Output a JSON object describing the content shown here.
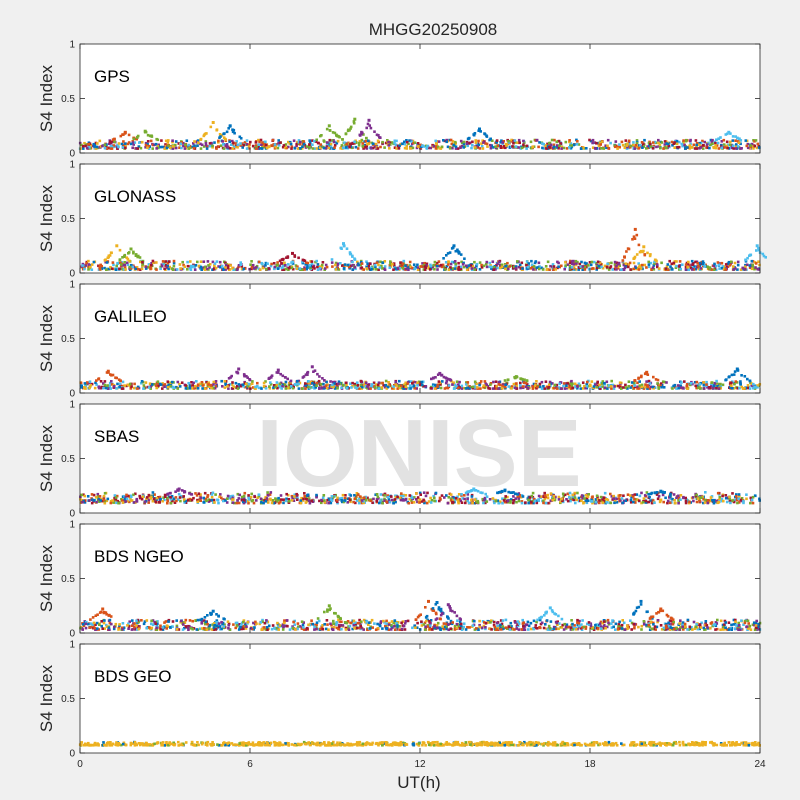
{
  "figure": {
    "title": "MHGG20250908",
    "xlabel": "UT(h)",
    "watermark": "IONISE",
    "colors": {
      "background": "#f0f0f0",
      "axes_bg": "#ffffff",
      "axis": "#262626",
      "watermark": "#d9d9d9"
    }
  },
  "chart_data": [
    {
      "type": "scatter",
      "label": "GPS",
      "ylabel": "S4 Index",
      "xlim": [
        0,
        24
      ],
      "ylim": [
        0,
        1
      ],
      "xticks": [
        "0",
        "6",
        "12",
        "18",
        "24"
      ],
      "yticks": [
        "0",
        "0.5",
        "1"
      ],
      "baseline_s4": [
        0.04,
        0.12
      ],
      "series": [
        {
          "name": "sat-blue",
          "color": "#0072BD"
        },
        {
          "name": "sat-orange",
          "color": "#D95319"
        },
        {
          "name": "sat-yellow",
          "color": "#EDB120"
        },
        {
          "name": "sat-purple",
          "color": "#7E2F8E"
        },
        {
          "name": "sat-green",
          "color": "#77AC30"
        },
        {
          "name": "sat-cyan",
          "color": "#4DBEEE"
        },
        {
          "name": "sat-darkred",
          "color": "#A2142F"
        }
      ],
      "peaks": [
        [
          4.7,
          0.28
        ],
        [
          5.3,
          0.25
        ],
        [
          8.8,
          0.25
        ],
        [
          9.7,
          0.31
        ],
        [
          10.2,
          0.3
        ],
        [
          14.1,
          0.22
        ],
        [
          1.6,
          0.19
        ],
        [
          2.3,
          0.2
        ],
        [
          22.9,
          0.19
        ]
      ]
    },
    {
      "type": "scatter",
      "label": "GLONASS",
      "ylabel": "S4 Index",
      "xlim": [
        0,
        24
      ],
      "ylim": [
        0,
        1
      ],
      "xticks": [
        "0",
        "6",
        "12",
        "18",
        "24"
      ],
      "yticks": [
        "0",
        "0.5",
        "1"
      ],
      "baseline_s4": [
        0.03,
        0.11
      ],
      "series": [
        {
          "name": "sat-blue",
          "color": "#0072BD"
        },
        {
          "name": "sat-orange",
          "color": "#D95319"
        },
        {
          "name": "sat-yellow",
          "color": "#EDB120"
        },
        {
          "name": "sat-purple",
          "color": "#7E2F8E"
        },
        {
          "name": "sat-green",
          "color": "#77AC30"
        },
        {
          "name": "sat-cyan",
          "color": "#4DBEEE"
        },
        {
          "name": "sat-darkred",
          "color": "#A2142F"
        }
      ],
      "peaks": [
        [
          1.3,
          0.25
        ],
        [
          1.8,
          0.22
        ],
        [
          9.3,
          0.27
        ],
        [
          13.2,
          0.25
        ],
        [
          19.6,
          0.4
        ],
        [
          19.9,
          0.24
        ],
        [
          23.9,
          0.25
        ],
        [
          7.5,
          0.18
        ]
      ]
    },
    {
      "type": "scatter",
      "label": "GALILEO",
      "ylabel": "S4 Index",
      "xlim": [
        0,
        24
      ],
      "ylim": [
        0,
        1
      ],
      "xticks": [
        "0",
        "6",
        "12",
        "18",
        "24"
      ],
      "yticks": [
        "0",
        "0.5",
        "1"
      ],
      "baseline_s4": [
        0.04,
        0.11
      ],
      "series": [
        {
          "name": "sat-blue",
          "color": "#0072BD"
        },
        {
          "name": "sat-orange",
          "color": "#D95319"
        },
        {
          "name": "sat-yellow",
          "color": "#EDB120"
        },
        {
          "name": "sat-purple",
          "color": "#7E2F8E"
        },
        {
          "name": "sat-green",
          "color": "#77AC30"
        },
        {
          "name": "sat-cyan",
          "color": "#4DBEEE"
        },
        {
          "name": "sat-darkred",
          "color": "#A2142F"
        }
      ],
      "peaks": [
        [
          1.0,
          0.2
        ],
        [
          5.6,
          0.22
        ],
        [
          7.0,
          0.21
        ],
        [
          8.2,
          0.24
        ],
        [
          12.7,
          0.18
        ],
        [
          20.0,
          0.19
        ],
        [
          23.2,
          0.22
        ],
        [
          15.4,
          0.15
        ]
      ]
    },
    {
      "type": "scatter",
      "label": "SBAS",
      "ylabel": "S4 Index",
      "xlim": [
        0,
        24
      ],
      "ylim": [
        0,
        1
      ],
      "xticks": [
        "0",
        "6",
        "12",
        "18",
        "24"
      ],
      "yticks": [
        "0",
        "0.5",
        "1"
      ],
      "baseline_s4": [
        0.09,
        0.17
      ],
      "series": [
        {
          "name": "sat-blue",
          "color": "#0072BD"
        },
        {
          "name": "sat-orange",
          "color": "#D95319"
        },
        {
          "name": "sat-yellow",
          "color": "#EDB120"
        },
        {
          "name": "sat-purple",
          "color": "#7E2F8E"
        },
        {
          "name": "sat-green",
          "color": "#77AC30"
        },
        {
          "name": "sat-cyan",
          "color": "#4DBEEE"
        },
        {
          "name": "sat-darkred",
          "color": "#A2142F"
        }
      ],
      "peaks": [
        [
          3.5,
          0.22
        ],
        [
          13.9,
          0.22
        ],
        [
          15.0,
          0.21
        ],
        [
          20.5,
          0.2
        ]
      ]
    },
    {
      "type": "scatter",
      "label": "BDS NGEO",
      "ylabel": "S4 Index",
      "xlim": [
        0,
        24
      ],
      "ylim": [
        0,
        1
      ],
      "xticks": [
        "0",
        "6",
        "12",
        "18",
        "24"
      ],
      "yticks": [
        "0",
        "0.5",
        "1"
      ],
      "baseline_s4": [
        0.03,
        0.12
      ],
      "series": [
        {
          "name": "sat-blue",
          "color": "#0072BD"
        },
        {
          "name": "sat-orange",
          "color": "#D95319"
        },
        {
          "name": "sat-yellow",
          "color": "#EDB120"
        },
        {
          "name": "sat-purple",
          "color": "#7E2F8E"
        },
        {
          "name": "sat-green",
          "color": "#77AC30"
        },
        {
          "name": "sat-cyan",
          "color": "#4DBEEE"
        },
        {
          "name": "sat-darkred",
          "color": "#A2142F"
        }
      ],
      "peaks": [
        [
          0.8,
          0.22
        ],
        [
          8.8,
          0.25
        ],
        [
          12.3,
          0.29
        ],
        [
          12.6,
          0.28
        ],
        [
          13.0,
          0.26
        ],
        [
          16.6,
          0.23
        ],
        [
          19.8,
          0.29
        ],
        [
          20.5,
          0.22
        ],
        [
          4.7,
          0.2
        ]
      ]
    },
    {
      "type": "scatter",
      "label": "BDS GEO",
      "ylabel": "S4 Index",
      "xlim": [
        0,
        24
      ],
      "ylim": [
        0,
        1
      ],
      "xticks": [
        "0",
        "6",
        "12",
        "18",
        "24"
      ],
      "yticks": [
        "0",
        "0.5",
        "1"
      ],
      "baseline_s4": [
        0.07,
        0.1
      ],
      "series": [
        {
          "name": "sat-yellow",
          "color": "#EDB120"
        },
        {
          "name": "sat-blue",
          "color": "#0072BD"
        },
        {
          "name": "sat-green",
          "color": "#77AC30"
        }
      ],
      "peaks": []
    }
  ]
}
